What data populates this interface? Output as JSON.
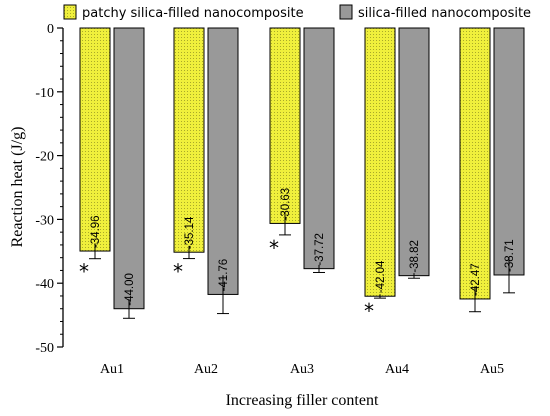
{
  "chart_data": {
    "type": "bar",
    "xlabel": "Increasing filler content",
    "ylabel": "Reaction heat (J/g)",
    "ylim": [
      -50,
      0
    ],
    "yticks": [
      0,
      -10,
      -20,
      -30,
      -40,
      -50
    ],
    "categories": [
      "Au1",
      "Au2",
      "Au3",
      "Au4",
      "Au5"
    ],
    "legend_position": "top",
    "series": [
      {
        "name": "patchy silica-filled nanocomposite",
        "color": "#f0f03c",
        "pattern": "dotted",
        "values": [
          -34.96,
          -35.14,
          -30.63,
          -42.04,
          -42.47
        ],
        "labels": [
          "-34.96",
          "-35.14",
          "-30.63",
          "-42.04",
          "-42.47"
        ],
        "errors": [
          1.2,
          1.0,
          1.8,
          0.3,
          2.0
        ],
        "significance": [
          "*",
          "*",
          "*",
          "*",
          ""
        ]
      },
      {
        "name": "silica-filled nanocomposite",
        "color": "#999999",
        "pattern": "solid",
        "values": [
          -44.0,
          -41.76,
          -37.72,
          -38.82,
          -38.71
        ],
        "labels": [
          "-44.00",
          "-41.76",
          "-37.72",
          "-38.82",
          "-38.71"
        ],
        "errors": [
          1.5,
          3.0,
          0.6,
          0.4,
          2.8
        ],
        "significance": [
          "",
          "",
          "",
          "",
          ""
        ]
      }
    ]
  }
}
